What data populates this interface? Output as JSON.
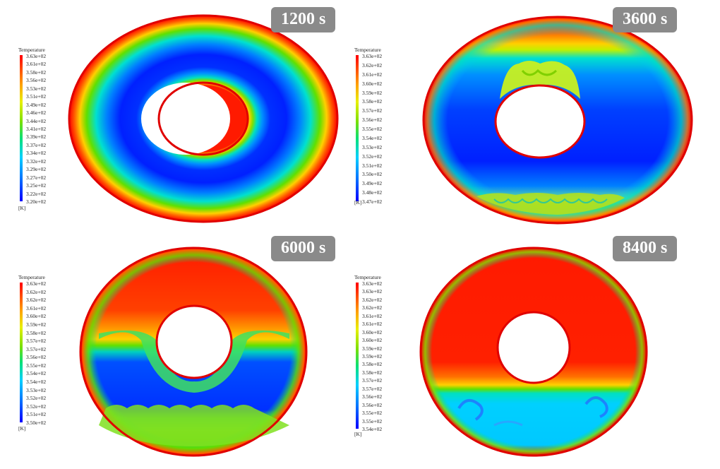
{
  "panels": [
    {
      "time_label": "1200 s",
      "legend_title": "Temperature",
      "unit": "[K]",
      "ticks": [
        "3.63e+02",
        "3.61e+02",
        "3.58e+02",
        "3.56e+02",
        "3.53e+02",
        "3.51e+02",
        "3.49e+02",
        "3.46e+02",
        "3.44e+02",
        "3.41e+02",
        "3.39e+02",
        "3.37e+02",
        "3.34e+02",
        "3.32e+02",
        "3.29e+02",
        "3.27e+02",
        "3.25e+02",
        "3.22e+02",
        "3.20e+02"
      ]
    },
    {
      "time_label": "3600 s",
      "legend_title": "Temperature",
      "unit": "[K]",
      "ticks": [
        "3.63e+02",
        "3.62e+02",
        "3.61e+02",
        "3.60e+02",
        "3.59e+02",
        "3.58e+02",
        "3.57e+02",
        "3.56e+02",
        "3.55e+02",
        "3.54e+02",
        "3.53e+02",
        "3.52e+02",
        "3.51e+02",
        "3.50e+02",
        "3.49e+02",
        "3.48e+02",
        "3.47e+02"
      ]
    },
    {
      "time_label": "6000 s",
      "legend_title": "Temperature",
      "unit": "[K]",
      "ticks": [
        "3.63e+02",
        "3.62e+02",
        "3.62e+02",
        "3.61e+02",
        "3.60e+02",
        "3.59e+02",
        "3.58e+02",
        "3.57e+02",
        "3.57e+02",
        "3.56e+02",
        "3.55e+02",
        "3.54e+02",
        "3.54e+02",
        "3.53e+02",
        "3.52e+02",
        "3.52e+02",
        "3.51e+02",
        "3.50e+02"
      ]
    },
    {
      "time_label": "8400 s",
      "legend_title": "Temperature",
      "unit": "[K]",
      "ticks": [
        "3.63e+02",
        "3.63e+02",
        "3.62e+02",
        "3.62e+02",
        "3.61e+02",
        "3.61e+02",
        "3.60e+02",
        "3.60e+02",
        "3.59e+02",
        "3.59e+02",
        "3.58e+02",
        "3.58e+02",
        "3.57e+02",
        "3.57e+02",
        "3.56e+02",
        "3.56e+02",
        "3.55e+02",
        "3.55e+02",
        "3.54e+02"
      ]
    }
  ],
  "colormap": [
    "#0000ff",
    "#0060ff",
    "#00b0ff",
    "#00e0e0",
    "#00e070",
    "#60e000",
    "#d0f000",
    "#ffd000",
    "#ff7a00",
    "#ff1a00"
  ]
}
